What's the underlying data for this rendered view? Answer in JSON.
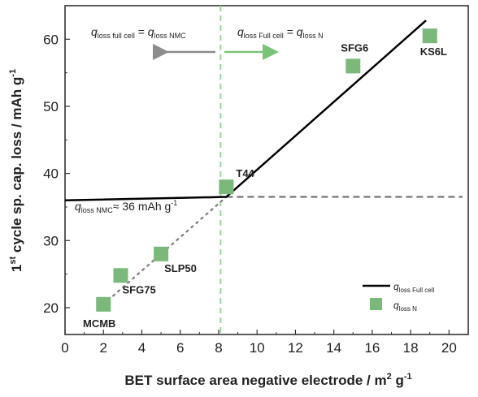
{
  "chart_data": {
    "type": "scatter",
    "xlabel_main": "BET surface area negative electrode / m",
    "xlabel_sup": "2",
    "xlabel_tail": " g",
    "xlabel_sup2": "-1",
    "ylabel_pre": "1",
    "ylabel_sup": "st",
    "ylabel_main": " cycle sp. cap. loss / mAh g",
    "ylabel_sup2": "-1",
    "xlim": [
      0,
      21
    ],
    "ylim": [
      16,
      65
    ],
    "xticks": [
      "0",
      "2",
      "4",
      "6",
      "8",
      "10",
      "12",
      "14",
      "16",
      "18",
      "20"
    ],
    "yticks": [
      "20",
      "30",
      "40",
      "50",
      "60"
    ],
    "grid": false,
    "points": [
      {
        "label": "MCMB",
        "x": 2.0,
        "y": 20.5
      },
      {
        "label": "SFG75",
        "x": 2.9,
        "y": 24.8
      },
      {
        "label": "SLP50",
        "x": 5.0,
        "y": 28.0
      },
      {
        "label": "T44",
        "x": 8.4,
        "y": 38.0
      },
      {
        "label": "SFG6",
        "x": 15.0,
        "y": 56.0
      },
      {
        "label": "KS6L",
        "x": 19.0,
        "y": 60.5
      }
    ],
    "full_cell_line": [
      {
        "x": 0.0,
        "y": 36.0
      },
      {
        "x": 8.4,
        "y": 36.5
      },
      {
        "x": 18.8,
        "y": 62.8
      }
    ],
    "nmc_dashed_level": 36.5,
    "dotted_trend": [
      {
        "x": 2.0,
        "y": 20.5
      },
      {
        "x": 8.4,
        "y": 36.5
      }
    ],
    "vertical_divider_x": 8.1,
    "colors": {
      "marker": "#7ab97a",
      "line": "#000000",
      "dashed": "#666666",
      "dotted": "#888888",
      "arrow_left": "#8c8c8c",
      "arrow_right": "#7ac47a",
      "divider": "#9fd39f"
    },
    "annotations": {
      "left_region": {
        "q": "q",
        "sub1": "loss  full cell",
        "eq": " = ",
        "q2": "q",
        "sub2": "loss  NMC"
      },
      "right_region": {
        "q": "q",
        "sub1": "loss  Full cell",
        "eq": " = ",
        "q2": "q",
        "sub2": "loss  N"
      },
      "nmc_value": {
        "q": "q",
        "sub": "loss  NMC",
        "text": "≈ 36 mAh g",
        "sup": "-1"
      }
    },
    "legend": {
      "position": "bottom-right",
      "line_entry": {
        "q": "q",
        "sub": "loss Full cell"
      },
      "marker_entry": {
        "q": "q",
        "sub": "loss N"
      }
    }
  }
}
